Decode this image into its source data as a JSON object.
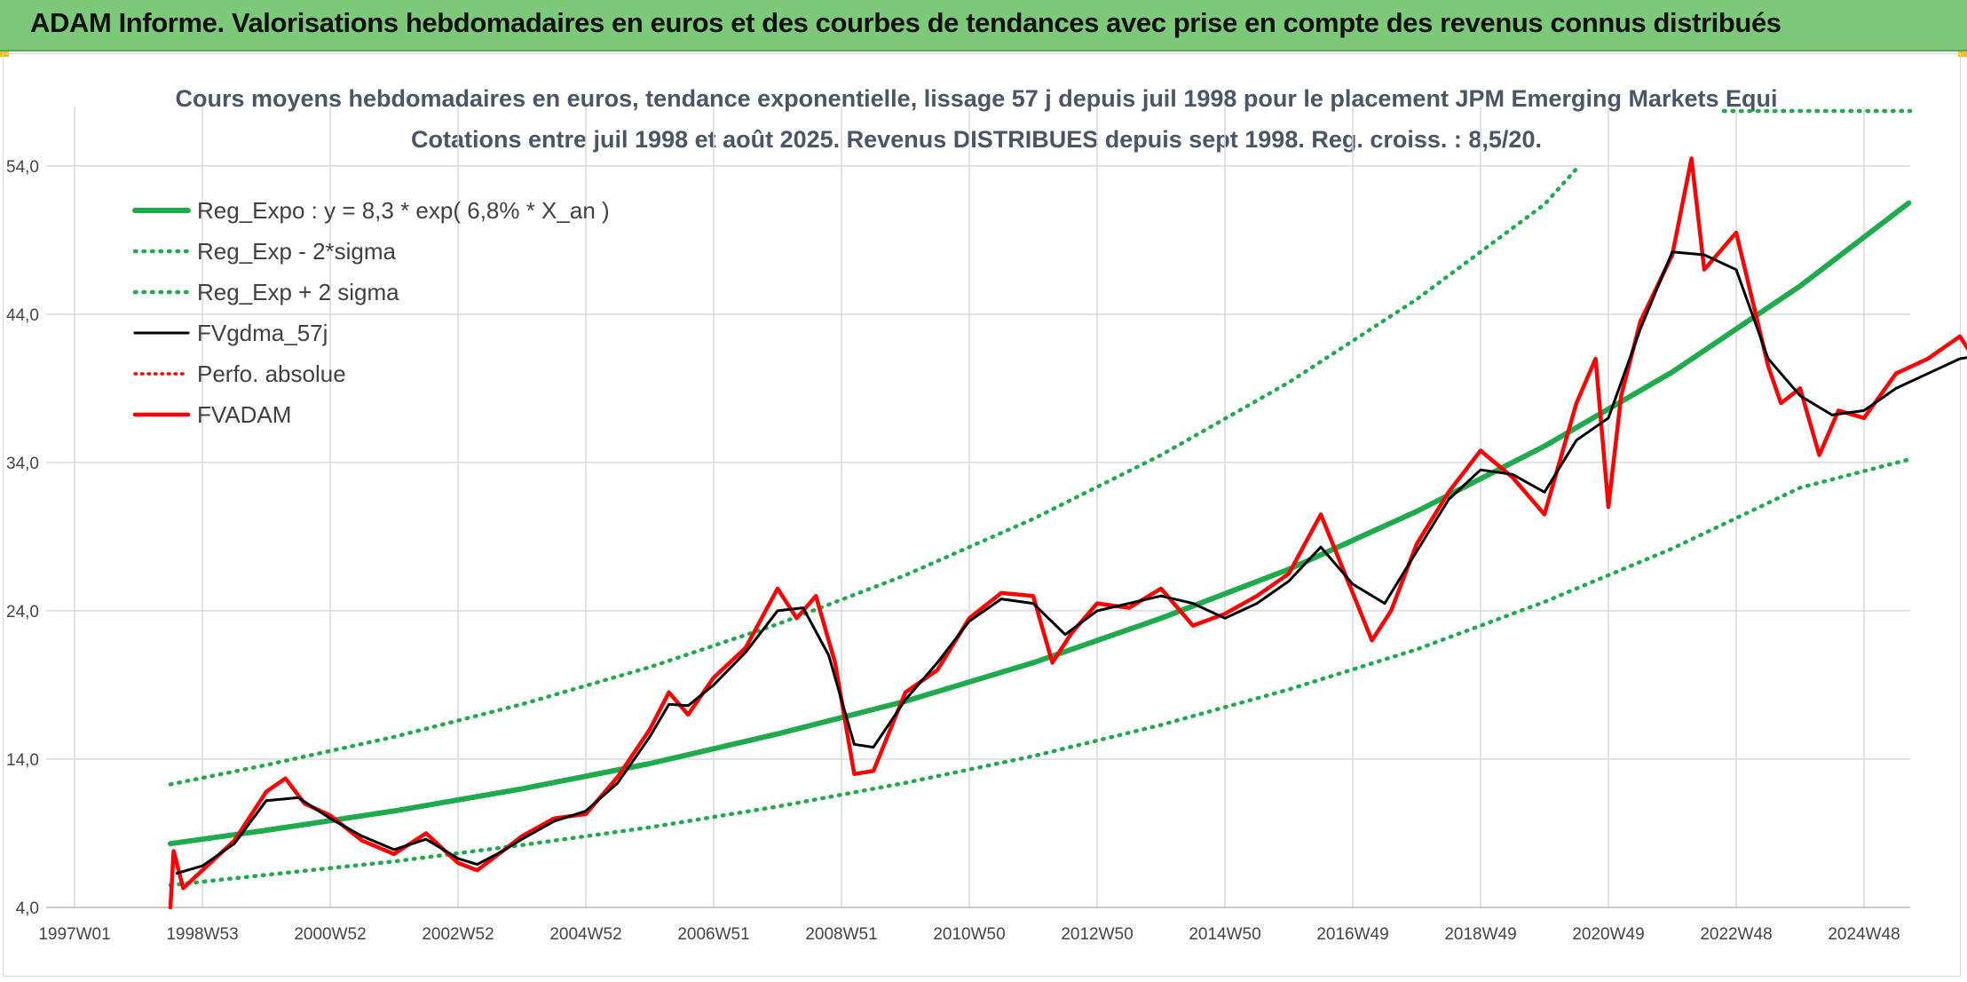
{
  "header": {
    "title": "ADAM Informe. Valorisations hebdomadaires en euros et des courbes de tendances avec prise en compte des revenus connus distribués"
  },
  "colors": {
    "header_bg": "#7dc97a",
    "regression": "#1faa4d",
    "sigma_bands": "#1faa4d",
    "fvgdma": "#000000",
    "fvadam": "#ff0000",
    "perfo": "#ff0000",
    "grid": "#d9d9d9"
  },
  "chart_data": {
    "type": "line",
    "title": "Cours moyens hebdomadaires en euros, tendance exponentielle, lissage 57 j depuis juil 1998 pour le placement JPM Emerging Markets Equi",
    "subtitle": "Cotations entre juil 1998 et août 2025. Revenus DISTRIBUES depuis sept 1998. Reg. croiss. : 8,5/20.",
    "x_axis": {
      "start": "1997W01",
      "end": "2025W35",
      "tick_labels": [
        "1997W01",
        "1998W53",
        "2000W52",
        "2002W52",
        "2004W52",
        "2006W51",
        "2008W51",
        "2010W50",
        "2012W50",
        "2014W50",
        "2016W49",
        "2018W49",
        "2020W49",
        "2022W48",
        "2024W48"
      ]
    },
    "y_axis": {
      "min": 4.0,
      "max": 58.0,
      "tick_labels": [
        "4,0",
        "14,0",
        "24,0",
        "34,0",
        "44,0",
        "54,0"
      ],
      "ticks": [
        4,
        14,
        24,
        34,
        44,
        54
      ]
    },
    "grid": true,
    "legend_position": "top-left",
    "series": [
      {
        "name": "Reg_Expo : y = 8,3 * exp( 6,8% *  X_an )",
        "style": "solid",
        "points": [
          [
            1998.5,
            8.3
          ],
          [
            2000,
            9.2
          ],
          [
            2002,
            10.5
          ],
          [
            2004,
            12.0
          ],
          [
            2006,
            13.7
          ],
          [
            2008,
            15.7
          ],
          [
            2010,
            17.9
          ],
          [
            2012,
            20.5
          ],
          [
            2014,
            23.5
          ],
          [
            2016,
            26.8
          ],
          [
            2018,
            30.7
          ],
          [
            2020,
            35.1
          ],
          [
            2022,
            40.1
          ],
          [
            2024,
            45.9
          ],
          [
            2025.7,
            51.5
          ]
        ]
      },
      {
        "name": "Reg_Exp - 2*sigma",
        "style": "dotted",
        "points": [
          [
            1998.5,
            5.5
          ],
          [
            2000,
            6.2
          ],
          [
            2002,
            7.1
          ],
          [
            2004,
            8.2
          ],
          [
            2006,
            9.4
          ],
          [
            2008,
            10.8
          ],
          [
            2010,
            12.4
          ],
          [
            2012,
            14.2
          ],
          [
            2014,
            16.3
          ],
          [
            2016,
            18.7
          ],
          [
            2018,
            21.4
          ],
          [
            2020,
            24.6
          ],
          [
            2022,
            28.2
          ],
          [
            2024,
            32.3
          ],
          [
            2025.7,
            34.2
          ]
        ]
      },
      {
        "name": "Reg_Exp + 2 sigma",
        "style": "dotted",
        "points": [
          [
            1998.5,
            12.3
          ],
          [
            2000,
            13.6
          ],
          [
            2002,
            15.5
          ],
          [
            2004,
            17.7
          ],
          [
            2006,
            20.2
          ],
          [
            2008,
            23.1
          ],
          [
            2010,
            26.4
          ],
          [
            2012,
            30.2
          ],
          [
            2014,
            34.5
          ],
          [
            2016,
            39.4
          ],
          [
            2018,
            45.0
          ],
          [
            2020,
            51.4
          ],
          [
            2020.5,
            53.8
          ]
        ]
      },
      {
        "name": "FVgdma_57j",
        "style": "solid",
        "points": [
          [
            1998.6,
            6.3
          ],
          [
            1999,
            6.8
          ],
          [
            1999.5,
            8.3
          ],
          [
            2000,
            11.2
          ],
          [
            2000.5,
            11.4
          ],
          [
            2001,
            10.0
          ],
          [
            2001.5,
            8.8
          ],
          [
            2002,
            7.9
          ],
          [
            2002.5,
            8.6
          ],
          [
            2003,
            7.3
          ],
          [
            2003.3,
            6.9
          ],
          [
            2003.7,
            7.8
          ],
          [
            2004,
            8.6
          ],
          [
            2004.5,
            9.8
          ],
          [
            2005,
            10.5
          ],
          [
            2005.5,
            12.4
          ],
          [
            2006,
            15.5
          ],
          [
            2006.3,
            17.7
          ],
          [
            2006.6,
            17.6
          ],
          [
            2007,
            19.0
          ],
          [
            2007.5,
            21.2
          ],
          [
            2008,
            24.0
          ],
          [
            2008.4,
            24.2
          ],
          [
            2008.8,
            21.0
          ],
          [
            2009.2,
            15.0
          ],
          [
            2009.5,
            14.8
          ],
          [
            2010,
            18.0
          ],
          [
            2010.5,
            20.5
          ],
          [
            2011,
            23.3
          ],
          [
            2011.5,
            24.8
          ],
          [
            2012,
            24.5
          ],
          [
            2012.5,
            22.4
          ],
          [
            2013,
            24.0
          ],
          [
            2013.5,
            24.5
          ],
          [
            2014,
            25.0
          ],
          [
            2014.5,
            24.5
          ],
          [
            2015,
            23.5
          ],
          [
            2015.5,
            24.5
          ],
          [
            2016,
            26.0
          ],
          [
            2016.5,
            28.3
          ],
          [
            2017,
            25.8
          ],
          [
            2017.5,
            24.5
          ],
          [
            2018,
            28.0
          ],
          [
            2018.5,
            31.5
          ],
          [
            2019,
            33.5
          ],
          [
            2019.5,
            33.2
          ],
          [
            2020,
            32.0
          ],
          [
            2020.5,
            35.5
          ],
          [
            2021,
            37.0
          ],
          [
            2021.5,
            43.0
          ],
          [
            2022,
            48.2
          ],
          [
            2022.5,
            48.0
          ],
          [
            2023,
            47.0
          ],
          [
            2023.5,
            41.0
          ],
          [
            2024,
            38.5
          ],
          [
            2024.5,
            37.2
          ],
          [
            2025,
            37.5
          ],
          [
            2025.5,
            39.0
          ],
          [
            2026,
            40.0
          ],
          [
            2026.5,
            41.0
          ],
          [
            2026.8,
            41.2
          ],
          [
            2027,
            40.5
          ],
          [
            2027.4,
            40.8
          ]
        ]
      },
      {
        "name": "Perfo. absolue",
        "style": "dotted",
        "points": []
      },
      {
        "name": "FVADAM",
        "style": "solid",
        "points": [
          [
            1998.5,
            4.0
          ],
          [
            1998.55,
            7.8
          ],
          [
            1998.7,
            5.3
          ],
          [
            1999,
            6.5
          ],
          [
            1999.5,
            8.5
          ],
          [
            2000,
            11.8
          ],
          [
            2000.3,
            12.7
          ],
          [
            2000.6,
            11.0
          ],
          [
            2001,
            10.2
          ],
          [
            2001.5,
            8.5
          ],
          [
            2002,
            7.6
          ],
          [
            2002.5,
            9.0
          ],
          [
            2003,
            7.0
          ],
          [
            2003.3,
            6.5
          ],
          [
            2003.7,
            7.8
          ],
          [
            2004,
            8.8
          ],
          [
            2004.5,
            10.0
          ],
          [
            2005,
            10.3
          ],
          [
            2005.5,
            12.8
          ],
          [
            2006,
            16.0
          ],
          [
            2006.3,
            18.5
          ],
          [
            2006.6,
            17.0
          ],
          [
            2007,
            19.5
          ],
          [
            2007.5,
            21.5
          ],
          [
            2008,
            25.5
          ],
          [
            2008.3,
            23.5
          ],
          [
            2008.6,
            25.0
          ],
          [
            2008.9,
            20.5
          ],
          [
            2009.2,
            13.0
          ],
          [
            2009.5,
            13.2
          ],
          [
            2010,
            18.5
          ],
          [
            2010.5,
            20.0
          ],
          [
            2011,
            23.5
          ],
          [
            2011.5,
            25.2
          ],
          [
            2012,
            25.0
          ],
          [
            2012.3,
            20.5
          ],
          [
            2012.6,
            22.5
          ],
          [
            2013,
            24.5
          ],
          [
            2013.5,
            24.2
          ],
          [
            2014,
            25.5
          ],
          [
            2014.5,
            23.0
          ],
          [
            2015,
            23.8
          ],
          [
            2015.5,
            25.0
          ],
          [
            2016,
            26.5
          ],
          [
            2016.5,
            30.5
          ],
          [
            2017,
            25.2
          ],
          [
            2017.3,
            22.0
          ],
          [
            2017.6,
            24.0
          ],
          [
            2018,
            28.5
          ],
          [
            2018.5,
            32.0
          ],
          [
            2019,
            34.8
          ],
          [
            2019.5,
            33.0
          ],
          [
            2020,
            30.5
          ],
          [
            2020.5,
            38.0
          ],
          [
            2020.8,
            41.0
          ],
          [
            2021,
            31.0
          ],
          [
            2021.2,
            38.5
          ],
          [
            2021.5,
            43.5
          ],
          [
            2022,
            48.0
          ],
          [
            2022.3,
            54.5
          ],
          [
            2022.5,
            47.0
          ],
          [
            2023,
            49.5
          ],
          [
            2023.5,
            40.5
          ],
          [
            2023.7,
            38.0
          ],
          [
            2024,
            39.0
          ],
          [
            2024.3,
            34.5
          ],
          [
            2024.6,
            37.5
          ],
          [
            2025,
            37.0
          ],
          [
            2025.5,
            40.0
          ],
          [
            2026,
            41.0
          ],
          [
            2026.5,
            42.5
          ],
          [
            2026.8,
            40.5
          ],
          [
            2027,
            35.5
          ],
          [
            2027.2,
            41.0
          ],
          [
            2027.4,
            42.0
          ]
        ]
      }
    ]
  }
}
